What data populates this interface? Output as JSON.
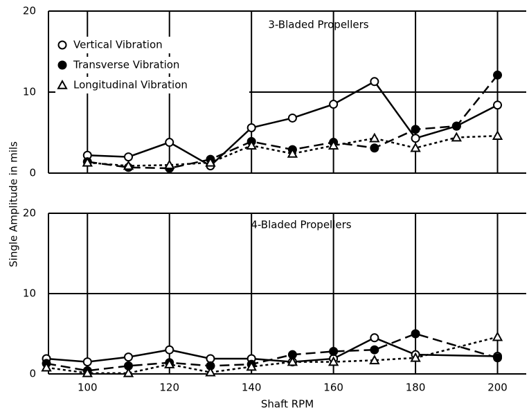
{
  "chart_data": [
    {
      "type": "line",
      "title": "3-Bladed Propellers",
      "ylabel": "Single Amplitude in mils",
      "xlim": [
        90.5,
        207
      ],
      "ylim": [
        0,
        20
      ],
      "yticks": [
        0,
        10,
        20
      ],
      "xticks": [
        100,
        120,
        140,
        160,
        180,
        200
      ],
      "show_xtick_labels": false,
      "grid": true,
      "legend": "upper left",
      "series": [
        {
          "name": "Vertical Vibration",
          "color": "#000000",
          "marker": "open-circle",
          "dash": "solid",
          "x": [
            100,
            110,
            120,
            130,
            140,
            150,
            160,
            170,
            180,
            190,
            200
          ],
          "values": [
            2.2,
            2.0,
            3.8,
            0.9,
            5.6,
            6.8,
            8.5,
            11.3,
            4.3,
            5.8,
            8.4
          ]
        },
        {
          "name": "Transverse Vibration",
          "color": "#000000",
          "marker": "filled-circle",
          "dash": "dashed",
          "x": [
            100,
            110,
            120,
            130,
            140,
            150,
            160,
            170,
            180,
            190,
            200
          ],
          "values": [
            1.4,
            0.7,
            0.6,
            1.7,
            3.9,
            2.9,
            3.8,
            3.1,
            5.4,
            5.8,
            12.1
          ]
        },
        {
          "name": "Longitudinal Vibration",
          "color": "#000000",
          "marker": "open-triangle",
          "dash": "dotted",
          "x": [
            100,
            110,
            120,
            130,
            140,
            150,
            160,
            170,
            180,
            190,
            200
          ],
          "values": [
            1.3,
            0.9,
            1.0,
            1.3,
            3.4,
            2.4,
            3.4,
            4.3,
            3.1,
            4.4,
            4.6
          ]
        }
      ]
    },
    {
      "type": "line",
      "title": "4-Bladed Propellers",
      "xlabel": "Shaft RPM",
      "xlim": [
        90.5,
        207
      ],
      "ylim": [
        0,
        20
      ],
      "yticks": [
        0,
        10,
        20
      ],
      "xticks": [
        100,
        120,
        140,
        160,
        180,
        200
      ],
      "show_xtick_labels": true,
      "grid": true,
      "series": [
        {
          "name": "Vertical Vibration",
          "color": "#000000",
          "marker": "open-circle",
          "dash": "solid",
          "x": [
            90,
            100,
            110,
            120,
            130,
            140,
            150,
            160,
            170,
            180,
            200
          ],
          "values": [
            1.9,
            1.5,
            2.1,
            3.0,
            1.9,
            1.9,
            1.5,
            1.9,
            4.5,
            2.4,
            2.2
          ]
        },
        {
          "name": "Transverse Vibration",
          "color": "#000000",
          "marker": "filled-circle",
          "dash": "dashed",
          "x": [
            90,
            100,
            110,
            120,
            130,
            140,
            150,
            160,
            170,
            180,
            200
          ],
          "values": [
            1.3,
            0.4,
            1.0,
            1.4,
            1.0,
            1.2,
            2.4,
            2.8,
            3.0,
            5.0,
            2.0
          ]
        },
        {
          "name": "Longitudinal Vibration",
          "color": "#000000",
          "marker": "open-triangle",
          "dash": "dotted",
          "x": [
            90,
            100,
            110,
            120,
            130,
            140,
            150,
            160,
            170,
            180,
            200
          ],
          "values": [
            0.8,
            0.1,
            0.1,
            1.2,
            0.2,
            0.9,
            1.5,
            1.5,
            1.7,
            2.0,
            4.6
          ]
        }
      ]
    }
  ]
}
